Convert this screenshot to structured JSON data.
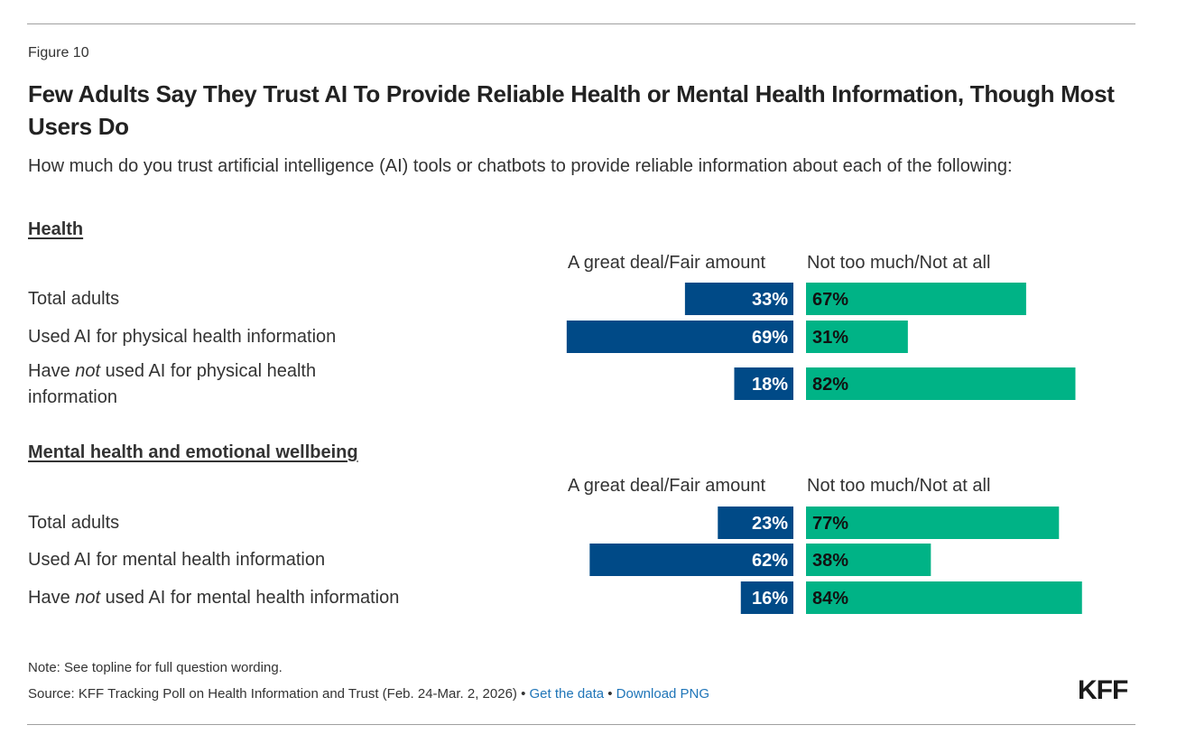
{
  "figure_label": "Figure 10",
  "title": "Few Adults Say They Trust AI To Provide Reliable Health or Mental Health Information, Though Most Users Do",
  "subtitle": "How much do you trust artificial intelligence (AI) tools or chatbots to provide reliable information about each of the following:",
  "colors": {
    "trust": "#004a87",
    "distrust": "#00b386",
    "trust_label": "#ffffff",
    "distrust_label": "#111111",
    "outside_label": "#333333"
  },
  "footer": {
    "note": "Note: See topline for full question wording.",
    "source": "Source: KFF Tracking Poll on Health Information and Trust (Feb. 24-Mar. 2, 2026)",
    "separator": " • ",
    "get_data_link": "Get the data",
    "download_link": "Download PNG",
    "logo": "KFF"
  },
  "chart_data": {
    "type": "bar",
    "orientation": "horizontal-diverging",
    "title": "Few Adults Say They Trust AI To Provide Reliable Health or Mental Health Information, Though Most Users Do",
    "legend": [
      "A great deal/Fair amount",
      "Not too much/Not at all"
    ],
    "unit": "%",
    "sections": [
      {
        "heading": "Health",
        "columns": [
          "A great deal/Fair amount",
          "Not too much/Not at all"
        ],
        "rows": [
          {
            "label_pre": "Total adults",
            "label_em": "",
            "label_post": "",
            "trust": 33,
            "distrust": 67
          },
          {
            "label_pre": "Used AI for physical health information",
            "label_em": "",
            "label_post": "",
            "trust": 69,
            "distrust": 31
          },
          {
            "label_pre": "Have ",
            "label_em": "not",
            "label_post": " used AI for physical health information",
            "trust": 18,
            "distrust": 82
          }
        ]
      },
      {
        "heading": "Mental health and emotional wellbeing",
        "columns": [
          "A great deal/Fair amount",
          "Not too much/Not at all"
        ],
        "rows": [
          {
            "label_pre": "Total adults",
            "label_em": "",
            "label_post": "",
            "trust": 23,
            "distrust": 77
          },
          {
            "label_pre": "Used AI for mental health information",
            "label_em": "",
            "label_post": "",
            "trust": 62,
            "distrust": 38
          },
          {
            "label_pre": "Have ",
            "label_em": "not",
            "label_post": " used AI for mental health information",
            "trust": 16,
            "distrust": 84
          }
        ]
      }
    ]
  }
}
